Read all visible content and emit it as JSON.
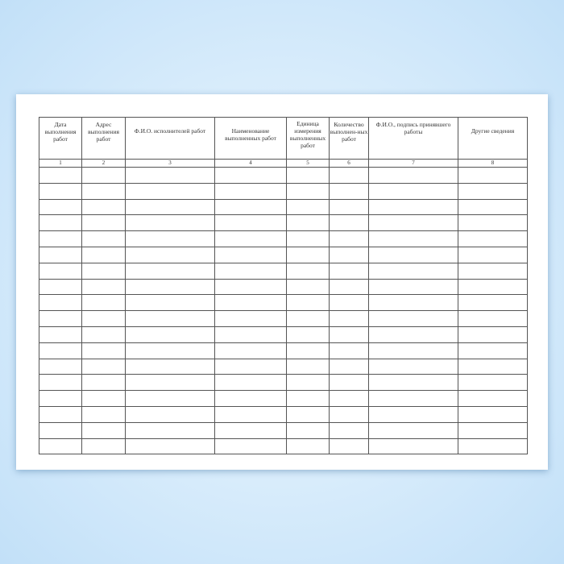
{
  "columns": [
    {
      "header": "Дата выполнения работ",
      "number": "1"
    },
    {
      "header": "Адрес выполнения работ",
      "number": "2"
    },
    {
      "header": "Ф.И.О. исполнителей работ",
      "number": "3"
    },
    {
      "header": "Наименование выполненных работ",
      "number": "4"
    },
    {
      "header": "Единица измерения выполненных работ",
      "number": "5"
    },
    {
      "header": "Количество выполнен-ных работ",
      "number": "6"
    },
    {
      "header": "Ф.И.О., подпись принявшего работы",
      "number": "7"
    },
    {
      "header": "Другие сведения",
      "number": "8"
    }
  ],
  "empty_rows": 18
}
